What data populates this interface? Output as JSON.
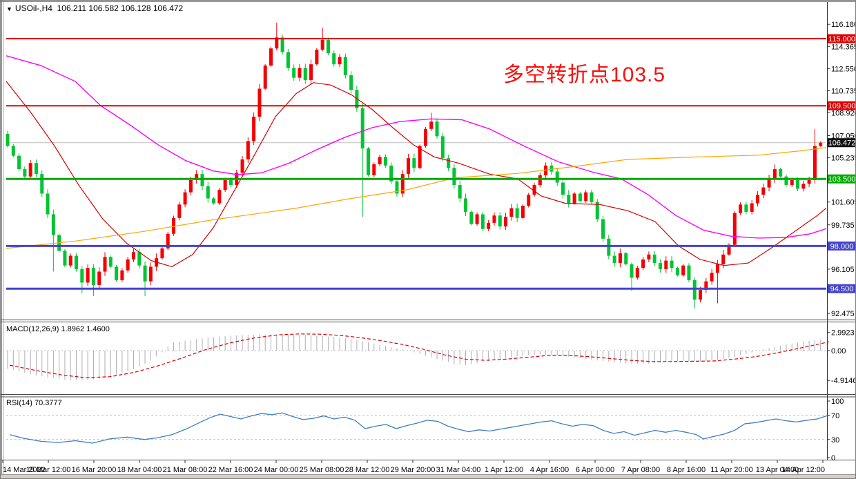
{
  "window": {
    "dropdown_icon": "▼",
    "symbol_period": "USOil-,H4",
    "ohlc_values": "106.211 106.582 106.128 106.472"
  },
  "annotation": {
    "text": "多空转折点103.5",
    "color": "#fa0d0d"
  },
  "indicators": {
    "macd": {
      "label": "MACD(12,26,9)",
      "values": "1.8962 1.4600"
    },
    "rsi": {
      "label": "RSI(14)",
      "value": "70.3777"
    }
  },
  "chart_data": {
    "type": "candlestick",
    "title": "USOil- H4",
    "colors": {
      "bull": "#f40000",
      "bear": "#00c432",
      "ma_fast": "#d40000",
      "ma_slow": "#ff00ff",
      "ma_long": "#ffa500",
      "macd_hist": "#ababb6",
      "macd_signal": "#d40000",
      "rsi_line": "#3d7dc0",
      "current_price_line": "#c0c0c0",
      "grid_dash": "#bdbdbd"
    },
    "main": {
      "ylim": [
        92.08,
        117.55
      ],
      "y_ticks": [
        "116.180",
        "114.365",
        "112.550",
        "110.735",
        "108.920",
        "107.050",
        "105.235",
        "101.605",
        "99.735",
        "96.105",
        "92.475"
      ],
      "current_price": 106.472,
      "current_price_label": "106.472",
      "hlines": [
        {
          "label": "115.000",
          "price": 115.0,
          "color": "#e00000",
          "width": 2
        },
        {
          "label": "109.500",
          "price": 109.5,
          "color": "#e00000",
          "width": 2
        },
        {
          "label": "103.500",
          "price": 103.5,
          "color": "#00aa00",
          "width": 3
        },
        {
          "label": "98.000",
          "price": 98.0,
          "color": "#4444cc",
          "width": 3
        },
        {
          "label": "94.500",
          "price": 94.5,
          "color": "#4444cc",
          "width": 3
        }
      ],
      "open_first": 107.2,
      "closes": [
        106.2,
        105.4,
        104.3,
        103.7,
        104.8,
        103.9,
        102.3,
        100.6,
        98.9,
        97.6,
        96.4,
        97.2,
        96.1,
        95.0,
        96.2,
        94.8,
        95.9,
        97.1,
        96.3,
        95.2,
        96.0,
        96.9,
        97.5,
        96.4,
        95.1,
        96.3,
        97.0,
        97.8,
        99.0,
        100.3,
        101.4,
        102.4,
        103.4,
        103.9,
        102.9,
        101.9,
        101.5,
        102.6,
        103.4,
        103.0,
        104.0,
        105.1,
        106.6,
        108.6,
        110.9,
        112.8,
        114.2,
        115.1,
        113.9,
        112.6,
        111.8,
        112.6,
        111.6,
        112.9,
        114.1,
        114.9,
        113.8,
        112.9,
        113.5,
        112.0,
        110.8,
        109.3,
        106.0,
        103.8,
        104.7,
        105.3,
        104.6,
        103.3,
        102.3,
        103.9,
        105.2,
        104.4,
        106.2,
        107.6,
        108.2,
        107.0,
        105.2,
        104.4,
        103.0,
        101.9,
        100.8,
        99.8,
        100.6,
        99.4,
        99.9,
        100.5,
        99.6,
        100.4,
        101.1,
        100.3,
        101.3,
        102.2,
        103.0,
        103.8,
        104.6,
        104.1,
        103.2,
        102.2,
        101.5,
        102.3,
        101.7,
        102.4,
        101.6,
        100.2,
        98.6,
        97.2,
        96.6,
        97.4,
        96.5,
        95.4,
        96.2,
        96.9,
        97.3,
        96.6,
        96.1,
        96.8,
        96.2,
        95.6,
        96.4,
        95.2,
        93.6,
        94.4,
        95.1,
        95.8,
        96.5,
        97.3,
        98.1,
        100.7,
        101.4,
        100.8,
        101.5,
        102.2,
        102.8,
        103.5,
        104.3,
        103.7,
        103.0,
        103.4,
        102.7,
        103.1,
        103.4,
        106.2,
        106.47
      ],
      "wicks_high": {
        "0": 107.45,
        "47": 116.32,
        "55": 115.9,
        "74": 108.92,
        "141": 107.6,
        "142": 106.58
      },
      "wicks_low": {
        "8": 95.9,
        "13": 94.1,
        "15": 93.9,
        "24": 93.9,
        "62": 100.4,
        "109": 94.3,
        "120": 92.88,
        "124": 93.3,
        "142": 106.13
      },
      "moving_averages": [
        {
          "name": "ma-magenta-slow",
          "color": "#ff00ff",
          "points": [
            [
              0,
              113.6
            ],
            [
              50,
              112.8
            ],
            [
              100,
              111.5
            ],
            [
              137,
              109.5
            ],
            [
              180,
              107.9
            ],
            [
              220,
              106.3
            ],
            [
              260,
              105.0
            ],
            [
              300,
              104.15
            ],
            [
              335,
              103.85
            ],
            [
              370,
              104.0
            ],
            [
              410,
              104.8
            ],
            [
              450,
              105.9
            ],
            [
              490,
              106.9
            ],
            [
              530,
              107.7
            ],
            [
              570,
              108.2
            ],
            [
              615,
              108.42
            ],
            [
              660,
              108.35
            ],
            [
              700,
              107.6
            ],
            [
              750,
              106.2
            ],
            [
              800,
              104.9
            ],
            [
              850,
              104.05
            ],
            [
              891,
              103.5
            ],
            [
              930,
              102.2
            ],
            [
              970,
              100.5
            ],
            [
              1010,
              99.3
            ],
            [
              1050,
              98.8
            ],
            [
              1090,
              98.65
            ],
            [
              1130,
              98.7
            ],
            [
              1165,
              99.0
            ],
            [
              1192,
              99.5
            ]
          ]
        },
        {
          "name": "ma-red-fast",
          "color": "#d40000",
          "points": [
            [
              0,
              111.5
            ],
            [
              35,
              109.0
            ],
            [
              70,
              106.2
            ],
            [
              105,
              103.0
            ],
            [
              140,
              100.2
            ],
            [
              175,
              98.2
            ],
            [
              210,
              96.8
            ],
            [
              240,
              96.3
            ],
            [
              270,
              97.3
            ],
            [
              300,
              99.5
            ],
            [
              330,
              102.5
            ],
            [
              360,
              105.5
            ],
            [
              390,
              108.6
            ],
            [
              420,
              110.5
            ],
            [
              445,
              111.4
            ],
            [
              470,
              111.2
            ],
            [
              500,
              110.4
            ],
            [
              530,
              109.2
            ],
            [
              560,
              107.7
            ],
            [
              590,
              106.3
            ],
            [
              620,
              105.3
            ],
            [
              655,
              104.8
            ],
            [
              700,
              103.9
            ],
            [
              741,
              103.5
            ],
            [
              775,
              102.1
            ],
            [
              810,
              101.5
            ],
            [
              860,
              101.4
            ],
            [
              900,
              100.9
            ],
            [
              940,
              100.0
            ],
            [
              974,
              98.0
            ],
            [
              1005,
              96.9
            ],
            [
              1040,
              96.4
            ],
            [
              1075,
              96.6
            ],
            [
              1110,
              97.9
            ],
            [
              1145,
              99.3
            ],
            [
              1175,
              100.5
            ],
            [
              1192,
              101.3
            ]
          ]
        },
        {
          "name": "ma-orange-long",
          "color": "#ffa500",
          "points": [
            [
              0,
              97.8
            ],
            [
              100,
              98.4
            ],
            [
              200,
              99.2
            ],
            [
              300,
              100.15
            ],
            [
              420,
              101.1
            ],
            [
              500,
              101.9
            ],
            [
              580,
              102.6
            ],
            [
              650,
              103.6
            ],
            [
              740,
              103.95
            ],
            [
              820,
              104.5
            ],
            [
              900,
              105.1
            ],
            [
              1000,
              105.3
            ],
            [
              1090,
              105.45
            ],
            [
              1150,
              105.8
            ],
            [
              1192,
              106.1
            ]
          ]
        }
      ]
    },
    "macd": {
      "y_ticks": [
        "2.9923",
        "0.00",
        "-4.9146"
      ],
      "histogram": [
        [
          5,
          -3.0
        ],
        [
          30,
          -3.8
        ],
        [
          60,
          -4.4
        ],
        [
          90,
          -4.85
        ],
        [
          115,
          -4.9
        ],
        [
          140,
          -4.5
        ],
        [
          165,
          -3.8
        ],
        [
          190,
          -2.8
        ],
        [
          210,
          -1.6
        ],
        [
          225,
          -0.3
        ],
        [
          240,
          1.3
        ],
        [
          270,
          1.8
        ],
        [
          300,
          2.2
        ],
        [
          330,
          2.5
        ],
        [
          365,
          2.65
        ],
        [
          395,
          2.7
        ],
        [
          425,
          2.6
        ],
        [
          455,
          2.4
        ],
        [
          485,
          2.15
        ],
        [
          510,
          1.7
        ],
        [
          535,
          1.1
        ],
        [
          560,
          0.5
        ],
        [
          580,
          0.1
        ],
        [
          600,
          -0.6
        ],
        [
          625,
          -1.4
        ],
        [
          650,
          -2.2
        ],
        [
          665,
          -2.4
        ],
        [
          690,
          -1.9
        ],
        [
          720,
          -1.3
        ],
        [
          750,
          -0.8
        ],
        [
          780,
          -0.6
        ],
        [
          810,
          -0.9
        ],
        [
          840,
          -1.4
        ],
        [
          870,
          -1.8
        ],
        [
          900,
          -2.1
        ],
        [
          930,
          -2.2
        ],
        [
          955,
          -1.9
        ],
        [
          980,
          -1.7
        ],
        [
          1005,
          -1.8
        ],
        [
          1030,
          -1.5
        ],
        [
          1055,
          -1.0
        ],
        [
          1080,
          -0.3
        ],
        [
          1105,
          0.4
        ],
        [
          1130,
          1.0
        ],
        [
          1155,
          1.5
        ],
        [
          1175,
          1.75
        ],
        [
          1192,
          1.9
        ]
      ],
      "signal": [
        [
          5,
          -2.4
        ],
        [
          40,
          -3.2
        ],
        [
          80,
          -4.0
        ],
        [
          115,
          -4.45
        ],
        [
          150,
          -4.3
        ],
        [
          185,
          -3.6
        ],
        [
          220,
          -2.5
        ],
        [
          255,
          -1.2
        ],
        [
          290,
          0.2
        ],
        [
          325,
          1.3
        ],
        [
          360,
          2.1
        ],
        [
          395,
          2.6
        ],
        [
          425,
          2.75
        ],
        [
          455,
          2.7
        ],
        [
          485,
          2.5
        ],
        [
          515,
          2.1
        ],
        [
          545,
          1.6
        ],
        [
          575,
          1.0
        ],
        [
          605,
          0.2
        ],
        [
          635,
          -0.7
        ],
        [
          665,
          -1.4
        ],
        [
          695,
          -1.6
        ],
        [
          725,
          -1.4
        ],
        [
          755,
          -1.1
        ],
        [
          785,
          -0.8
        ],
        [
          815,
          -0.8
        ],
        [
          845,
          -1.0
        ],
        [
          875,
          -1.3
        ],
        [
          905,
          -1.6
        ],
        [
          935,
          -1.8
        ],
        [
          965,
          -1.8
        ],
        [
          995,
          -1.75
        ],
        [
          1025,
          -1.7
        ],
        [
          1055,
          -1.4
        ],
        [
          1085,
          -1.0
        ],
        [
          1115,
          -0.4
        ],
        [
          1145,
          0.3
        ],
        [
          1170,
          0.9
        ],
        [
          1192,
          1.46
        ]
      ]
    },
    "rsi": {
      "y_ticks": [
        "100",
        "70",
        "30",
        "0"
      ],
      "levels": [
        70,
        30
      ],
      "line": [
        [
          5,
          38
        ],
        [
          25,
          32
        ],
        [
          50,
          27
        ],
        [
          75,
          25
        ],
        [
          100,
          28
        ],
        [
          125,
          24
        ],
        [
          150,
          31
        ],
        [
          175,
          34
        ],
        [
          200,
          30
        ],
        [
          220,
          33
        ],
        [
          240,
          38
        ],
        [
          260,
          47
        ],
        [
          280,
          58
        ],
        [
          295,
          66
        ],
        [
          310,
          72
        ],
        [
          325,
          68
        ],
        [
          340,
          64
        ],
        [
          355,
          69
        ],
        [
          370,
          73
        ],
        [
          385,
          71
        ],
        [
          400,
          74
        ],
        [
          415,
          68
        ],
        [
          430,
          63
        ],
        [
          445,
          65
        ],
        [
          460,
          69
        ],
        [
          475,
          64
        ],
        [
          490,
          67
        ],
        [
          505,
          62
        ],
        [
          520,
          48
        ],
        [
          535,
          52
        ],
        [
          550,
          55
        ],
        [
          565,
          48
        ],
        [
          580,
          53
        ],
        [
          595,
          57
        ],
        [
          610,
          62
        ],
        [
          625,
          60
        ],
        [
          640,
          52
        ],
        [
          655,
          47
        ],
        [
          670,
          43
        ],
        [
          685,
          46
        ],
        [
          700,
          44
        ],
        [
          715,
          47
        ],
        [
          730,
          50
        ],
        [
          745,
          53
        ],
        [
          760,
          56
        ],
        [
          775,
          59
        ],
        [
          790,
          61
        ],
        [
          805,
          56
        ],
        [
          820,
          52
        ],
        [
          835,
          55
        ],
        [
          850,
          53
        ],
        [
          865,
          45
        ],
        [
          880,
          40
        ],
        [
          895,
          43
        ],
        [
          910,
          37
        ],
        [
          925,
          41
        ],
        [
          940,
          45
        ],
        [
          955,
          42
        ],
        [
          970,
          45
        ],
        [
          985,
          42
        ],
        [
          1000,
          38
        ],
        [
          1010,
          31
        ],
        [
          1025,
          35
        ],
        [
          1040,
          39
        ],
        [
          1055,
          45
        ],
        [
          1070,
          56
        ],
        [
          1085,
          58
        ],
        [
          1100,
          61
        ],
        [
          1115,
          64
        ],
        [
          1130,
          61
        ],
        [
          1145,
          59
        ],
        [
          1160,
          62
        ],
        [
          1175,
          64
        ],
        [
          1192,
          70.4
        ]
      ]
    },
    "time_axis": {
      "labels": [
        "14 Mar 2022",
        "15 Mar 12:00",
        "16 Mar 20:00",
        "18 Mar 04:00",
        "21 Mar 08:00",
        "22 Mar 16:00",
        "24 Mar 00:00",
        "25 Mar 08:00",
        "28 Mar 12:00",
        "29 Mar 20:00",
        "31 Mar 04:00",
        "1 Apr 12:00",
        "4 Apr 16:00",
        "6 Apr 00:00",
        "7 Apr 08:00",
        "8 Apr 16:00",
        "11 Apr 20:00",
        "13 Apr 04:00",
        "14 Apr 12:00"
      ]
    }
  }
}
